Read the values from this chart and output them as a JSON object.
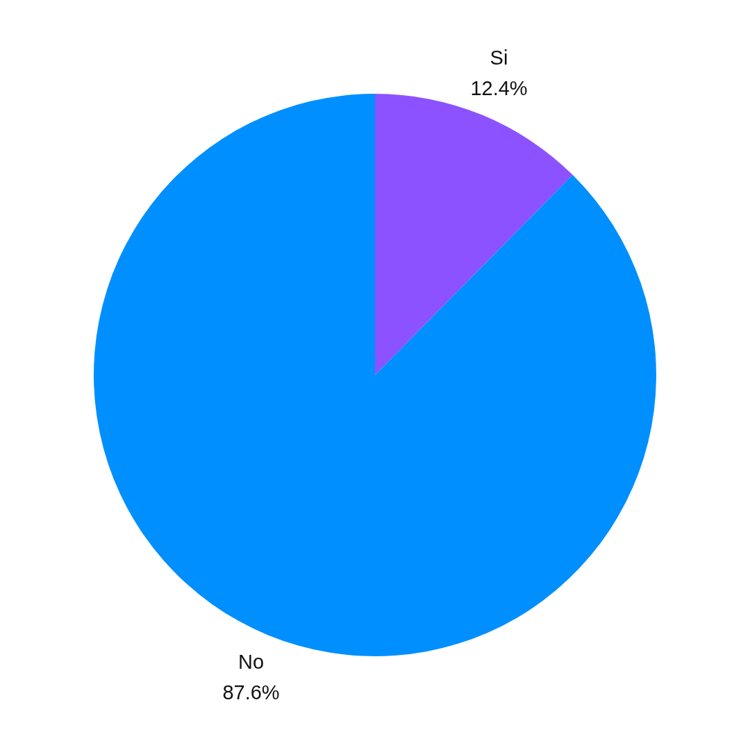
{
  "chart_data": {
    "type": "pie",
    "categories": [
      "Si",
      "No"
    ],
    "values": [
      12.4,
      87.6
    ],
    "colors": [
      "#8c52ff",
      "#008ffe"
    ],
    "value_labels": [
      "12.4%",
      "87.6%"
    ]
  }
}
